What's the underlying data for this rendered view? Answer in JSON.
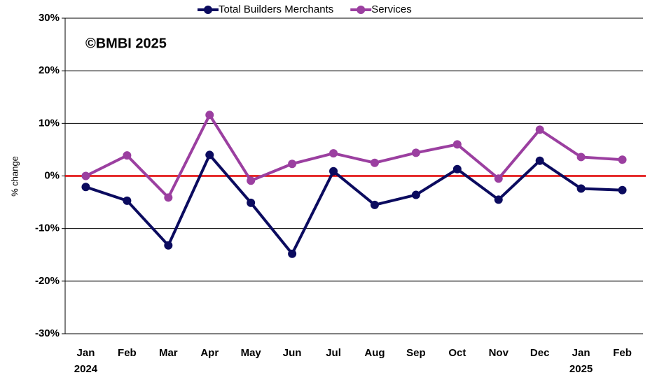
{
  "chart_data": {
    "type": "line",
    "annotation": "©BMBI 2025",
    "y_label": "% change",
    "categories": [
      "Jan 2024",
      "Feb",
      "Mar",
      "Apr",
      "May",
      "Jun",
      "Jul",
      "Aug",
      "Sep",
      "Oct",
      "Nov",
      "Dec",
      "Jan 2025",
      "Feb"
    ],
    "series": [
      {
        "name": "Total Builders Merchants",
        "color": "#0b0b5f",
        "values": [
          -2.1,
          -4.7,
          -13.2,
          4.0,
          -5.1,
          -14.8,
          0.9,
          -5.5,
          -3.6,
          1.3,
          -4.5,
          2.9,
          -2.4,
          -2.7
        ]
      },
      {
        "name": "Services",
        "color": "#9b3fa0",
        "values": [
          0,
          3.9,
          -4.1,
          11.6,
          -0.9,
          2.3,
          4.3,
          2.5,
          4.4,
          6.0,
          -0.5,
          8.8,
          3.6,
          3.1
        ]
      }
    ],
    "ylim": [
      -30,
      30
    ],
    "yticks": [
      {
        "value": -30,
        "label": "-30%"
      },
      {
        "value": -20,
        "label": "-20%"
      },
      {
        "value": -10,
        "label": "-10%"
      },
      {
        "value": 0,
        "label": "0%"
      },
      {
        "value": 10,
        "label": "10%"
      },
      {
        "value": 20,
        "label": "20%"
      },
      {
        "value": 30,
        "label": "30%"
      }
    ],
    "grid": true,
    "zero_line_color": "#e00000",
    "legend": "top"
  }
}
